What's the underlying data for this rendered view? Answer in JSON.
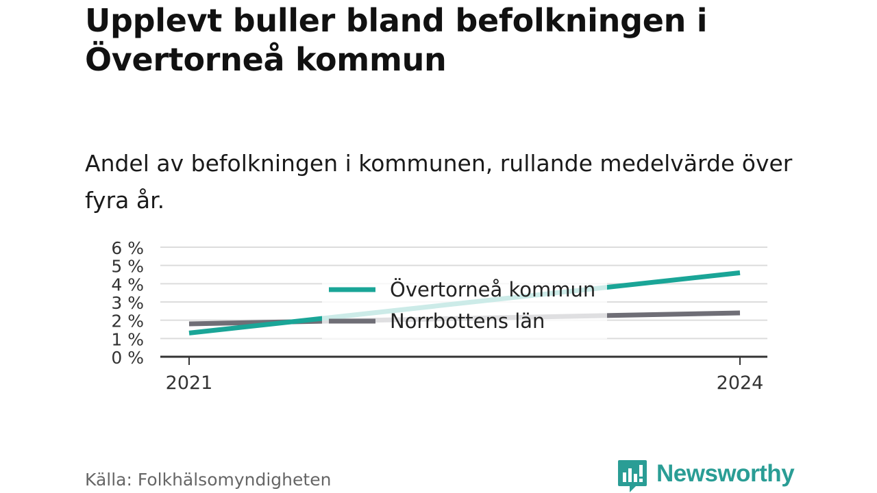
{
  "title": "Upplevt buller bland befolkningen i Övertorneå kommun",
  "subtitle": "Andel av befolkningen i kommunen, rullande medelvärde över fyra år.",
  "source": "Källa: Folkhälsomyndigheten",
  "brand": {
    "name": "Newsworthy",
    "icon": "newsworthy-logo-icon",
    "color": "#2a9d95"
  },
  "chart_data": {
    "type": "line",
    "x": [
      2021,
      2024
    ],
    "x_tick_labels": [
      "2021",
      "2024"
    ],
    "y_tick_labels": [
      "0 %",
      "1 %",
      "2 %",
      "3 %",
      "4 %",
      "5 %",
      "6 %"
    ],
    "ylim": [
      0,
      6
    ],
    "y_unit": "%",
    "grid": true,
    "legend_position": "center",
    "series": [
      {
        "name": "Övertorneå kommun",
        "color": "#1aa597",
        "values": [
          1.3,
          4.6
        ]
      },
      {
        "name": "Norrbottens län",
        "color": "#6f6e76",
        "values": [
          1.8,
          2.4
        ]
      }
    ]
  }
}
